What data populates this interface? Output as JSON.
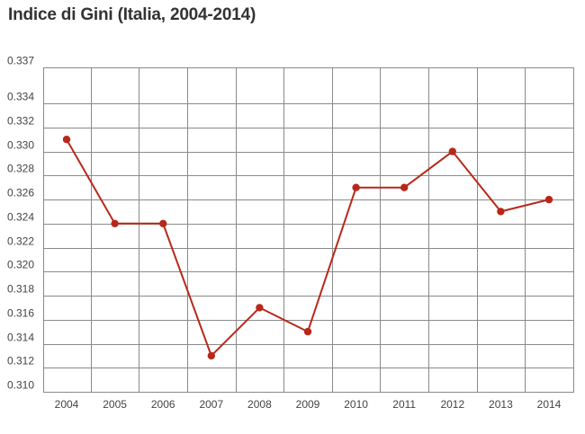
{
  "chart_data": {
    "type": "line",
    "title": "Indice di Gini (Italia, 2004-2014)",
    "xlabel": "",
    "ylabel": "",
    "categories": [
      "2004",
      "2005",
      "2006",
      "2007",
      "2008",
      "2009",
      "2010",
      "2011",
      "2012",
      "2013",
      "2014"
    ],
    "series": [
      {
        "values": [
          0.331,
          0.324,
          0.324,
          0.313,
          0.317,
          0.315,
          0.327,
          0.327,
          0.33,
          0.325,
          0.326
        ]
      }
    ],
    "ylim": [
      0.31,
      0.337
    ],
    "y_ticks": [
      "0.310",
      "0.312",
      "0.314",
      "0.316",
      "0.318",
      "0.320",
      "0.322",
      "0.324",
      "0.326",
      "0.328",
      "0.330",
      "0.332",
      "0.334",
      "0.337"
    ],
    "grid": true,
    "legend": "none",
    "colors": {
      "series": "#b8281a",
      "grid": "#8a8a8a",
      "text": "#444444",
      "title": "#333333"
    }
  }
}
